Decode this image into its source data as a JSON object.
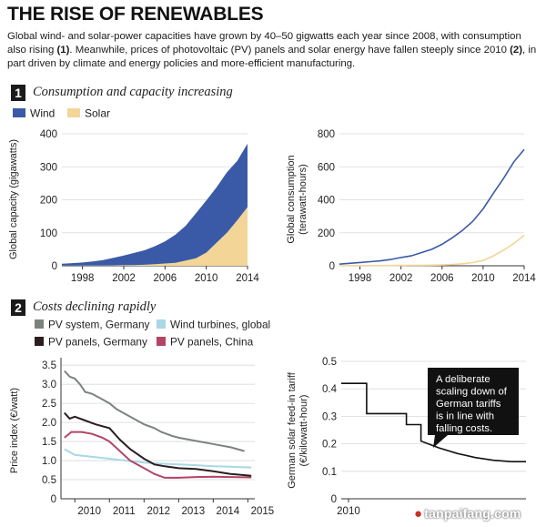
{
  "title": "THE RISE OF RENEWABLES",
  "intro": {
    "p1": "Global wind- and solar-power capacities have grown by 40–50 gigwatts each year since 2008, with consumption also rising ",
    "ref1": "(1)",
    "p2": ". Meanwhile, prices of photovoltaic (PV) panels and solar energy have fallen steeply since 2010 ",
    "ref2": "(2)",
    "p3": ", in part driven by climate and energy policies and more-efficient manufacturing."
  },
  "section1": {
    "number": "1",
    "title": "Consumption and capacity increasing"
  },
  "section2": {
    "number": "2",
    "title": "Costs declining rapidly"
  },
  "watermark": "tanpaifang.com",
  "colors": {
    "wind": "#3a5aa8",
    "solar": "#f3d598",
    "pv_system_germany": "#7c837f",
    "wind_turbines_global": "#a8d8e6",
    "pv_panels_germany": "#2b1d20",
    "pv_panels_china": "#b24565",
    "tariff": "#111111",
    "grid": "#d9d9d9",
    "axis": "#333333"
  },
  "chart_data": [
    {
      "id": "capacity",
      "type": "area",
      "ylabel": "Global capacity (gigawatts)",
      "xlabel": "",
      "legend": [
        {
          "key": "wind",
          "label": "Wind"
        },
        {
          "key": "solar",
          "label": "Solar"
        }
      ],
      "xlim": [
        1996,
        2014
      ],
      "ylim": [
        0,
        400
      ],
      "yticks": [
        0,
        100,
        200,
        300,
        400
      ],
      "xticks": [
        1998,
        2002,
        2006,
        2010,
        2014
      ],
      "x": [
        1996,
        1997,
        1998,
        1999,
        2000,
        2001,
        2002,
        2003,
        2004,
        2005,
        2006,
        2007,
        2008,
        2009,
        2010,
        2011,
        2012,
        2013,
        2014
      ],
      "series": [
        {
          "name": "Wind",
          "values": [
            6,
            8,
            10,
            13,
            17,
            24,
            31,
            39,
            47,
            59,
            74,
            94,
            121,
            159,
            198,
            238,
            283,
            318,
            370
          ]
        },
        {
          "name": "Solar",
          "values": [
            0.3,
            0.4,
            0.5,
            0.7,
            0.9,
            1.2,
            1.6,
            2.2,
            3,
            5,
            7,
            9,
            16,
            23,
            40,
            70,
            100,
            138,
            178
          ]
        }
      ]
    },
    {
      "id": "consumption",
      "type": "line",
      "ylabel": "Global consumption (terawatt-hours)",
      "xlabel": "",
      "xlim": [
        1996,
        2014
      ],
      "ylim": [
        0,
        800
      ],
      "yticks": [
        0,
        200,
        400,
        600,
        800
      ],
      "xticks": [
        1998,
        2002,
        2006,
        2010,
        2014
      ],
      "x": [
        1996,
        1997,
        1998,
        1999,
        2000,
        2001,
        2002,
        2003,
        2004,
        2005,
        2006,
        2007,
        2008,
        2009,
        2010,
        2011,
        2012,
        2013,
        2014
      ],
      "series": [
        {
          "name": "Wind",
          "values": [
            10,
            15,
            20,
            25,
            30,
            38,
            50,
            60,
            80,
            100,
            130,
            170,
            215,
            270,
            345,
            440,
            530,
            630,
            705
          ]
        },
        {
          "name": "Solar",
          "values": [
            0.5,
            0.6,
            0.8,
            1,
            1.2,
            1.5,
            2,
            2.5,
            3,
            4,
            5,
            7,
            12,
            20,
            32,
            60,
            95,
            135,
            185
          ]
        }
      ]
    },
    {
      "id": "prices",
      "type": "line",
      "ylabel": "Price index (€/watt)",
      "xlabel": "",
      "legend": [
        {
          "key": "pv_system_germany",
          "label": "PV system, Germany"
        },
        {
          "key": "wind_turbines_global",
          "label": "Wind turbines, global"
        },
        {
          "key": "pv_panels_germany",
          "label": "PV panels, Germany"
        },
        {
          "key": "pv_panels_china",
          "label": "PV panels, China"
        }
      ],
      "xlim": [
        2009.6,
        2015.2
      ],
      "ylim": [
        0,
        3.6
      ],
      "yticks": [
        0,
        0.5,
        1.0,
        1.5,
        2.0,
        2.5,
        3.0,
        3.5
      ],
      "ytick_labels": [
        "0",
        "0.5",
        "1.0",
        "1.5",
        "2.0",
        "2.5",
        "3.0",
        "3.5"
      ],
      "xticks": [
        2010,
        2011,
        2012,
        2013,
        2014,
        2015
      ],
      "series": [
        {
          "name": "PV system, Germany",
          "x": [
            2009.7,
            2009.85,
            2010.0,
            2010.15,
            2010.3,
            2010.5,
            2010.7,
            2011.0,
            2011.2,
            2011.5,
            2011.8,
            2012.0,
            2012.3,
            2012.5,
            2012.8,
            2013.0,
            2013.3,
            2013.6,
            2013.9,
            2014.2,
            2014.5,
            2014.7,
            2014.9
          ],
          "values": [
            3.35,
            3.2,
            3.15,
            3.0,
            2.8,
            2.75,
            2.65,
            2.5,
            2.35,
            2.2,
            2.05,
            1.95,
            1.85,
            1.75,
            1.65,
            1.6,
            1.55,
            1.5,
            1.45,
            1.4,
            1.35,
            1.3,
            1.25
          ]
        },
        {
          "name": "Wind turbines, global",
          "x": [
            2009.7,
            2010.0,
            2010.5,
            2011.0,
            2011.5,
            2012.0,
            2012.5,
            2013.0,
            2013.5,
            2014.0,
            2014.5,
            2015.1
          ],
          "values": [
            1.3,
            1.15,
            1.1,
            1.05,
            1.0,
            0.95,
            0.92,
            0.9,
            0.88,
            0.85,
            0.84,
            0.82
          ]
        },
        {
          "name": "PV panels, Germany",
          "x": [
            2009.7,
            2009.85,
            2010.0,
            2010.3,
            2010.6,
            2011.0,
            2011.3,
            2011.6,
            2012.0,
            2012.3,
            2012.6,
            2013.0,
            2013.5,
            2014.0,
            2014.5,
            2015.1
          ],
          "values": [
            2.25,
            2.1,
            2.15,
            2.05,
            1.95,
            1.85,
            1.55,
            1.3,
            1.05,
            0.9,
            0.85,
            0.8,
            0.78,
            0.72,
            0.65,
            0.6
          ]
        },
        {
          "name": "PV panels, China",
          "x": [
            2009.7,
            2009.9,
            2010.2,
            2010.5,
            2010.8,
            2011.0,
            2011.3,
            2011.6,
            2012.0,
            2012.3,
            2012.6,
            2013.0,
            2013.5,
            2014.0,
            2014.5,
            2015.1
          ],
          "values": [
            1.6,
            1.75,
            1.75,
            1.7,
            1.6,
            1.5,
            1.25,
            1.0,
            0.8,
            0.65,
            0.55,
            0.55,
            0.57,
            0.58,
            0.57,
            0.56
          ]
        }
      ]
    },
    {
      "id": "tariff",
      "type": "line",
      "ylabel": "German solar feed-in tariff (€/kilowatt-hour)",
      "xlabel": "",
      "annotation": "A deliberate scaling down of German tariffs is in line with falling costs.",
      "xlim": [
        2009.8,
        2014.9
      ],
      "ylim": [
        0,
        0.5
      ],
      "yticks": [
        0,
        0.1,
        0.2,
        0.3,
        0.4,
        0.5
      ],
      "ytick_labels": [
        "0",
        "0.1",
        "0.2",
        "0.3",
        "0.4",
        "0.5"
      ],
      "xticks": [
        2010
      ],
      "x": [
        2009.8,
        2010.5,
        2010.5,
        2011.6,
        2011.6,
        2012.0,
        2012.0,
        2012.3,
        2012.5,
        2013.0,
        2013.5,
        2014.0,
        2014.5,
        2014.9
      ],
      "series": [
        {
          "name": "Feed-in tariff",
          "values": [
            0.42,
            0.42,
            0.31,
            0.31,
            0.27,
            0.27,
            0.21,
            0.195,
            0.185,
            0.165,
            0.15,
            0.14,
            0.135,
            0.135
          ]
        }
      ]
    }
  ]
}
